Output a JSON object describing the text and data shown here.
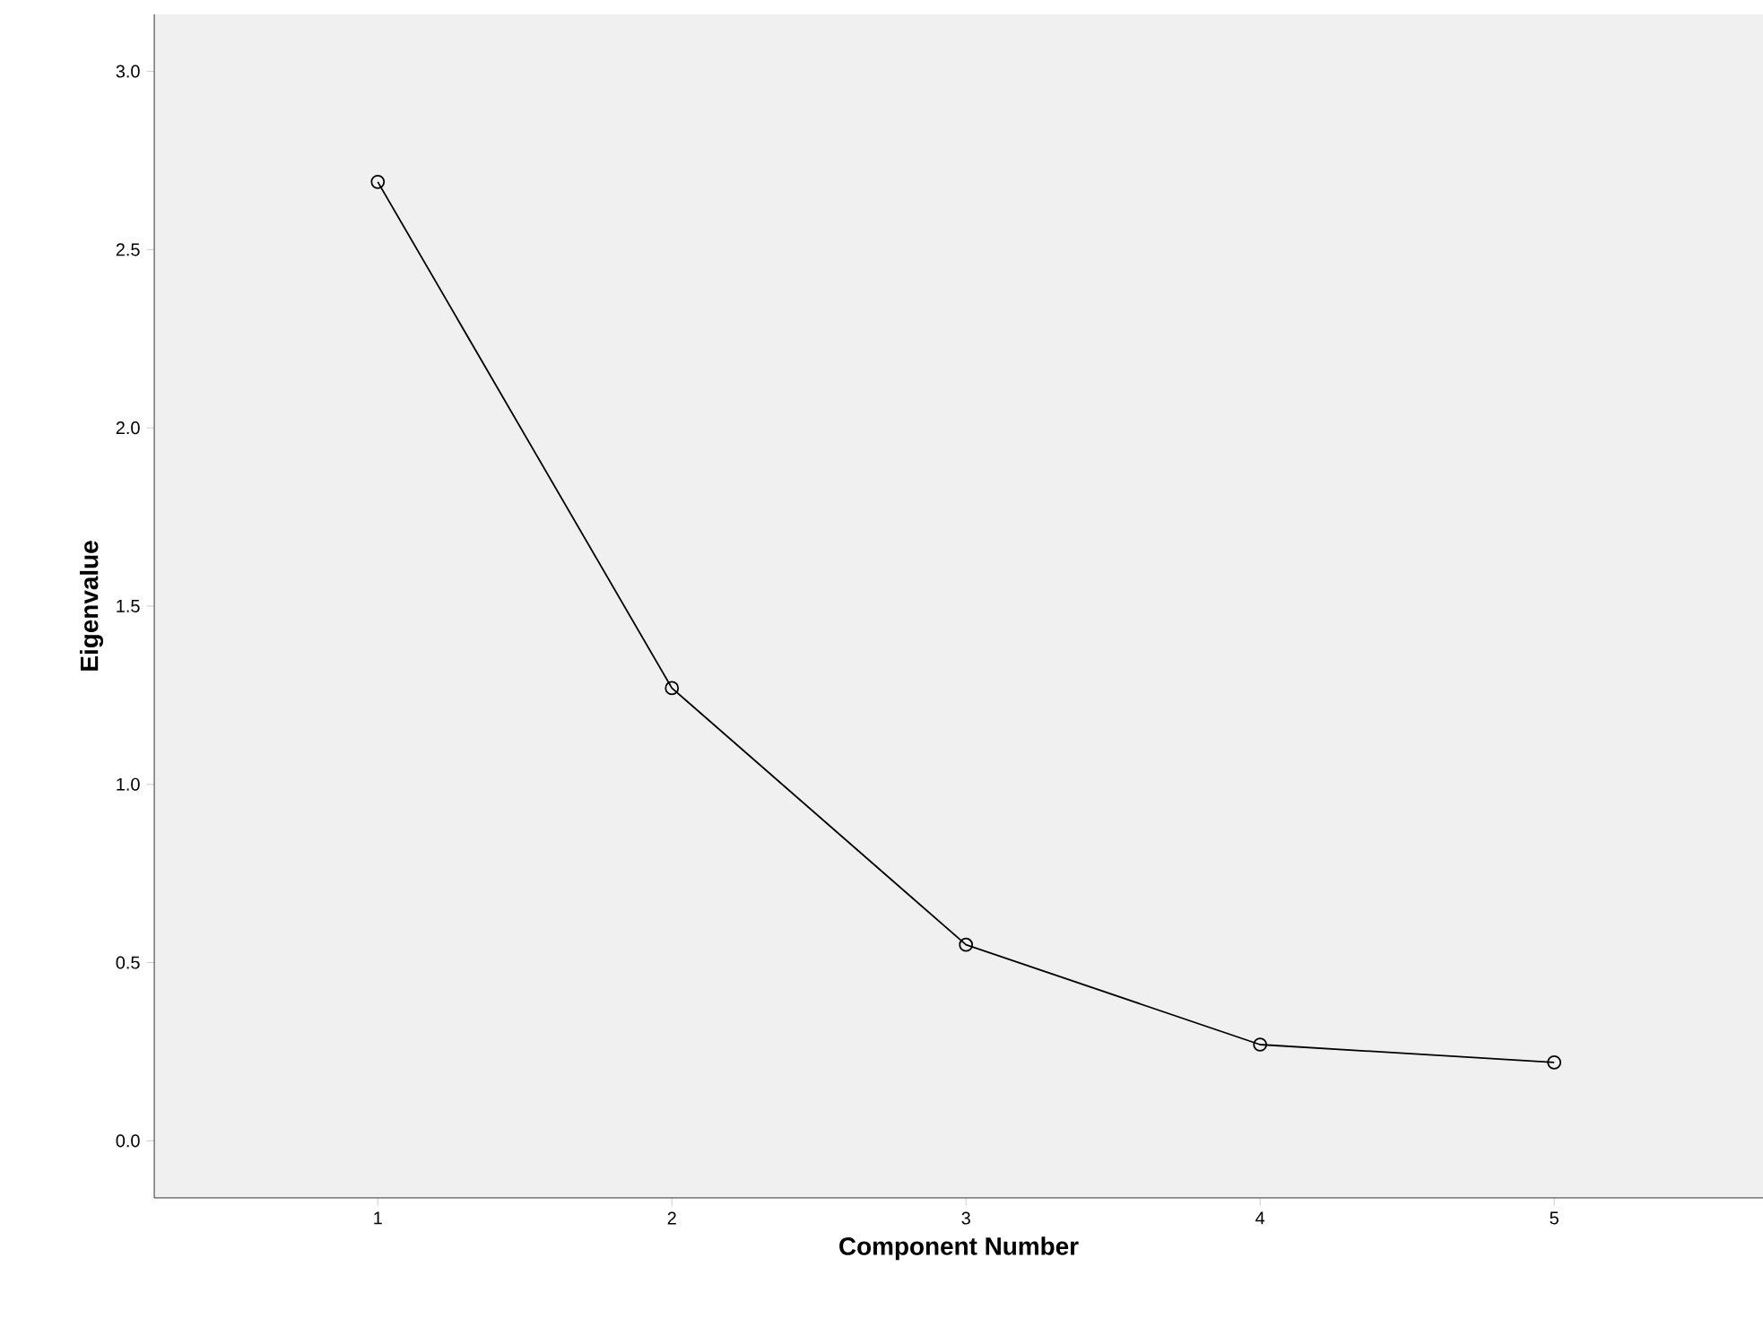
{
  "chart_data": {
    "type": "line",
    "xlabel": "Component Number",
    "ylabel": "Eigenvalue",
    "x": [
      1,
      2,
      3,
      4,
      5
    ],
    "values": [
      2.69,
      1.27,
      0.55,
      0.27,
      0.22
    ],
    "color": "#000000",
    "marker": "circle",
    "line_style": "solid",
    "grid": false,
    "xlim": [
      0.24,
      5.71
    ],
    "ylim": [
      -0.16,
      3.16
    ],
    "xticks": [
      1,
      2,
      3,
      4,
      5
    ],
    "yticks": [
      {
        "value": 0,
        "label": "0.0"
      },
      {
        "value": 0.5,
        "label": "0.5"
      },
      {
        "value": 1,
        "label": "1.0"
      },
      {
        "value": 1.5,
        "label": "1.5"
      },
      {
        "value": 2,
        "label": "2.0"
      },
      {
        "value": 2.5,
        "label": "2.5"
      },
      {
        "value": 3,
        "label": "3.0"
      }
    ]
  }
}
